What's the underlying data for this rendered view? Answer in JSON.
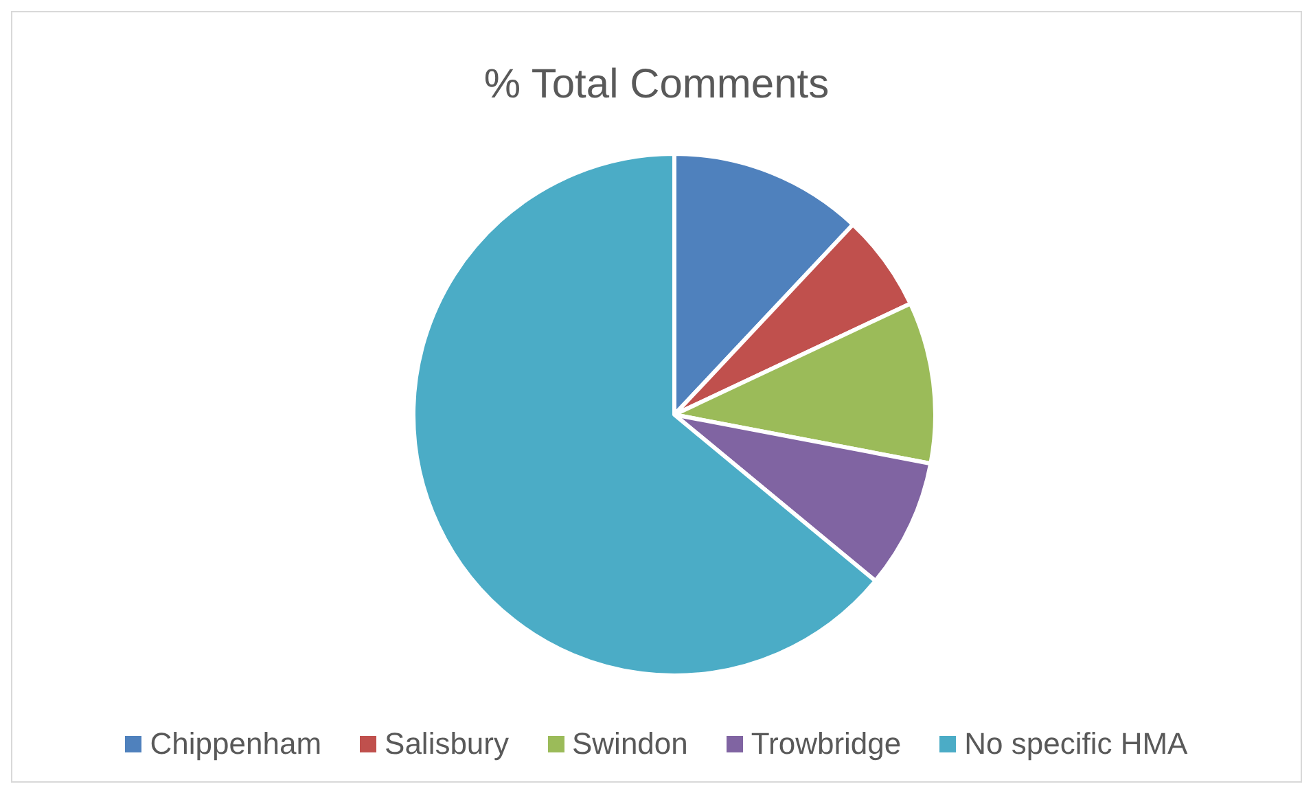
{
  "chart_data": {
    "type": "pie",
    "title": "% Total Comments",
    "categories": [
      "Chippenham",
      "Salisbury",
      "Swindon",
      "Trowbridge",
      "No specific HMA"
    ],
    "values": [
      12,
      6,
      10,
      8,
      64
    ],
    "colors": [
      "#4f81bd",
      "#c0504d",
      "#9bbb59",
      "#8064a2",
      "#4bacc6"
    ],
    "legend": "bottom"
  }
}
